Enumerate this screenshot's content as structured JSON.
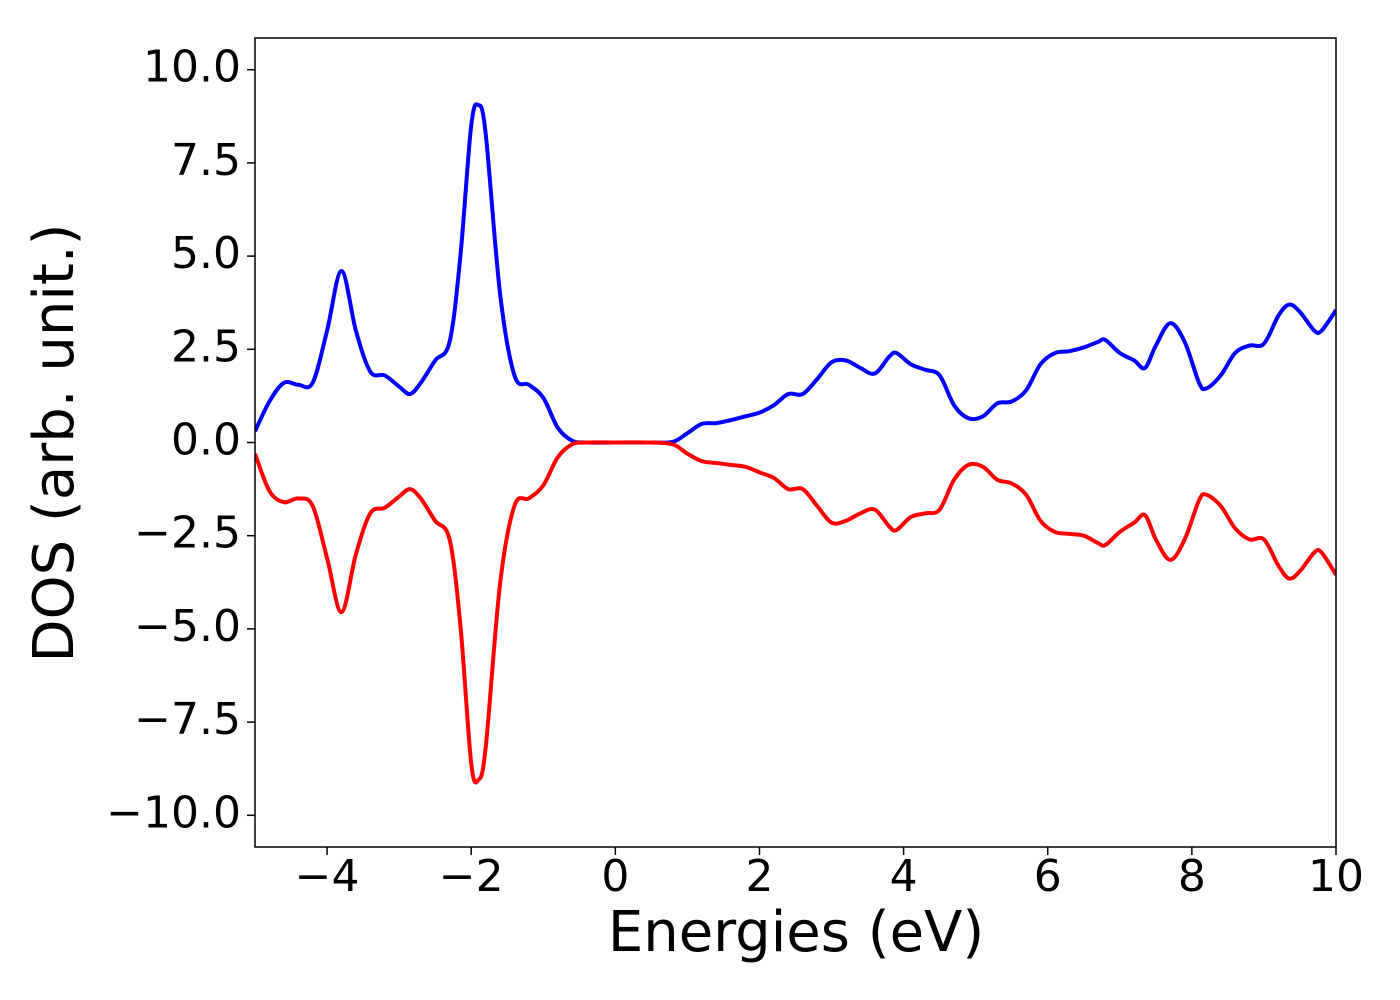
{
  "chart_data": {
    "type": "line",
    "x_label": "Energies (eV)",
    "y_label": "DOS (arb. unit.)",
    "x": [
      -5.0,
      -4.8,
      -4.6,
      -4.4,
      -4.2,
      -4.0,
      -3.8,
      -3.6,
      -3.4,
      -3.2,
      -3.0,
      -2.85,
      -2.7,
      -2.5,
      -2.3,
      -2.15,
      -2.0,
      -1.9,
      -1.8,
      -1.6,
      -1.4,
      -1.2,
      -1.0,
      -0.8,
      -0.6,
      -0.4,
      0,
      0.5,
      0.8,
      1.0,
      1.2,
      1.4,
      1.6,
      1.8,
      2.0,
      2.2,
      2.4,
      2.6,
      2.8,
      3.0,
      3.2,
      3.4,
      3.6,
      3.8,
      3.9,
      4.1,
      4.3,
      4.5,
      4.7,
      4.9,
      5.1,
      5.3,
      5.5,
      5.7,
      5.9,
      6.1,
      6.3,
      6.5,
      6.7,
      6.8,
      7.0,
      7.2,
      7.35,
      7.5,
      7.7,
      7.9,
      8.1,
      8.2,
      8.4,
      8.6,
      8.8,
      9.0,
      9.2,
      9.35,
      9.5,
      9.7,
      9.8,
      10.0
    ],
    "series": [
      {
        "color": "#0000ff",
        "values": [
          0.3,
          1.1,
          1.6,
          1.55,
          1.6,
          3.0,
          4.6,
          3.0,
          1.9,
          1.8,
          1.5,
          1.3,
          1.6,
          2.2,
          2.7,
          5.0,
          8.5,
          9.05,
          8.3,
          4.0,
          1.8,
          1.55,
          1.2,
          0.4,
          0.05,
          0,
          0,
          0,
          0.02,
          0.25,
          0.5,
          0.52,
          0.6,
          0.7,
          0.8,
          1.0,
          1.3,
          1.3,
          1.7,
          2.15,
          2.2,
          2.0,
          1.85,
          2.3,
          2.4,
          2.1,
          1.95,
          1.8,
          1.0,
          0.65,
          0.7,
          1.05,
          1.1,
          1.4,
          2.1,
          2.4,
          2.45,
          2.55,
          2.7,
          2.75,
          2.4,
          2.2,
          2.0,
          2.6,
          3.2,
          2.7,
          1.6,
          1.45,
          1.8,
          2.4,
          2.6,
          2.65,
          3.4,
          3.7,
          3.5,
          3.0,
          3.0,
          3.55
        ]
      },
      {
        "color": "#ff0000",
        "values": [
          -0.3,
          -1.3,
          -1.6,
          -1.5,
          -1.7,
          -3.1,
          -4.55,
          -3.0,
          -1.9,
          -1.75,
          -1.45,
          -1.25,
          -1.5,
          -2.1,
          -2.6,
          -4.9,
          -8.6,
          -9.05,
          -8.2,
          -3.8,
          -1.7,
          -1.5,
          -1.15,
          -0.4,
          -0.05,
          0,
          0,
          0,
          -0.05,
          -0.3,
          -0.5,
          -0.55,
          -0.6,
          -0.65,
          -0.8,
          -0.95,
          -1.25,
          -1.25,
          -1.7,
          -2.15,
          -2.1,
          -1.9,
          -1.8,
          -2.25,
          -2.35,
          -2.0,
          -1.9,
          -1.8,
          -1.0,
          -0.6,
          -0.65,
          -1.0,
          -1.1,
          -1.4,
          -2.1,
          -2.4,
          -2.45,
          -2.5,
          -2.7,
          -2.75,
          -2.4,
          -2.15,
          -1.95,
          -2.6,
          -3.15,
          -2.6,
          -1.55,
          -1.4,
          -1.7,
          -2.3,
          -2.6,
          -2.6,
          -3.3,
          -3.65,
          -3.45,
          -2.95,
          -2.95,
          -3.55
        ]
      }
    ],
    "xlim": [
      -5,
      10
    ],
    "xticks": [
      {
        "value": -4,
        "label": "−4"
      },
      {
        "value": -2,
        "label": "−2"
      },
      0,
      2,
      4,
      6,
      8,
      10
    ],
    "ylim": [
      -10.85,
      10.85
    ],
    "yticks": [
      {
        "value": -10,
        "label": "−10.0"
      },
      {
        "value": -7.5,
        "label": "−7.5"
      },
      {
        "value": -5,
        "label": "−5.0"
      },
      {
        "value": -2.5,
        "label": "−2.5"
      },
      {
        "value": 0,
        "label": "0.0"
      },
      {
        "value": 2.5,
        "label": "2.5"
      },
      {
        "value": 5,
        "label": "5.0"
      },
      {
        "value": 7.5,
        "label": "7.5"
      },
      {
        "value": 10,
        "label": "10.0"
      }
    ],
    "grid": false
  }
}
